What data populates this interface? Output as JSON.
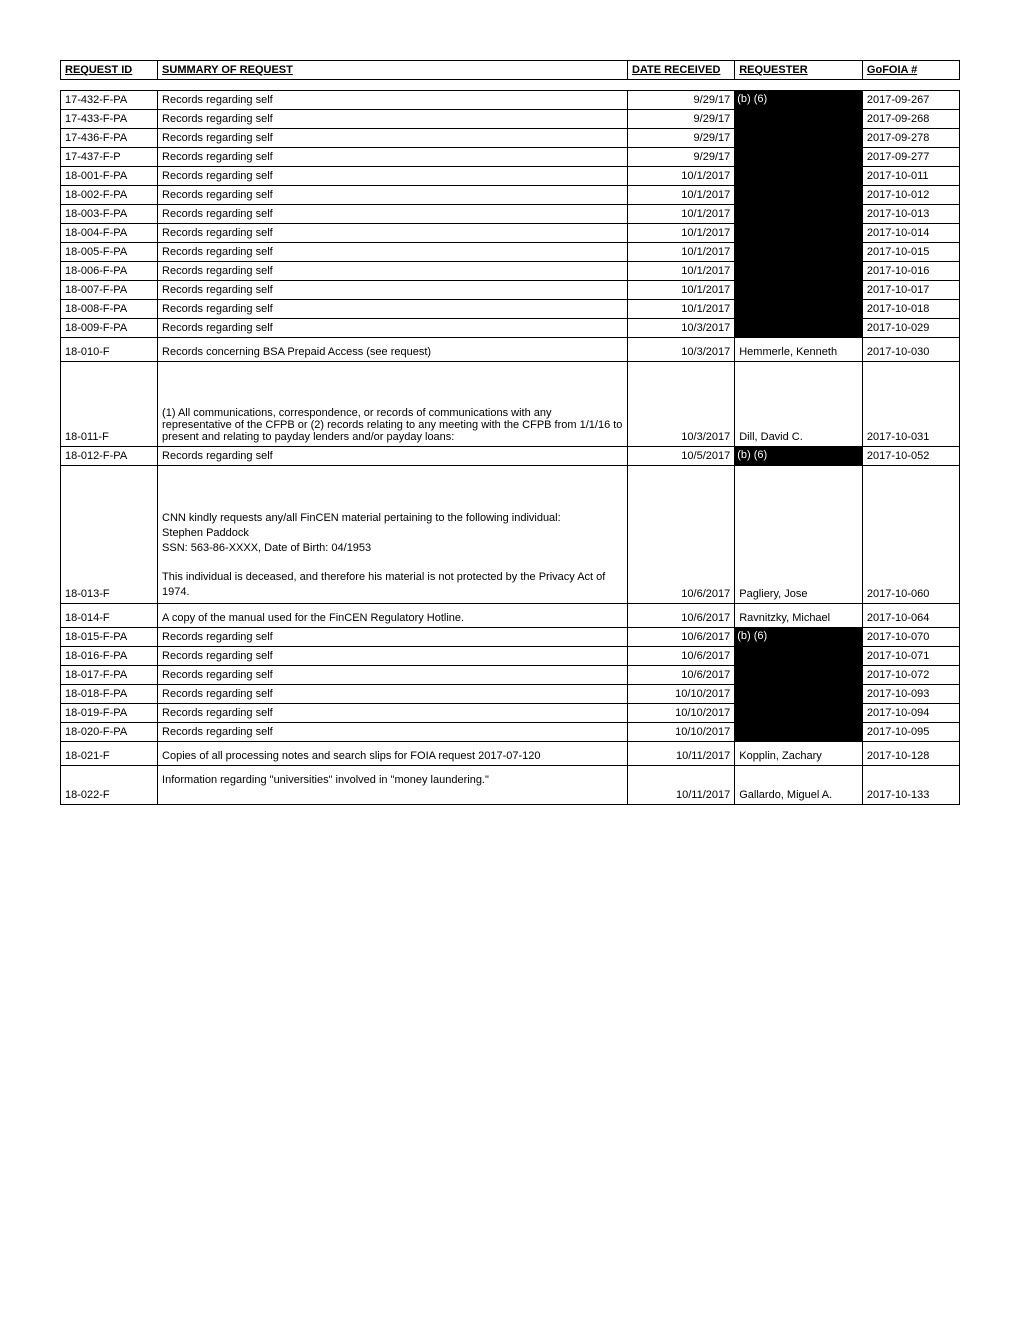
{
  "headers": {
    "request_id": "REQUEST ID",
    "summary": "SUMMARY OF REQUEST",
    "date": "DATE RECEIVED",
    "requester": "REQUESTER",
    "gofoia": "GoFOIA #"
  },
  "redaction_label": "(b) (6)",
  "rows": [
    {
      "id": "17-432-F-PA",
      "summary": "Records regarding self",
      "date": "9/29/17",
      "requester_redacted": true,
      "show_redact_label": true,
      "gofoia": "2017-09-267"
    },
    {
      "id": "17-433-F-PA",
      "summary": "Records regarding self",
      "date": "9/29/17",
      "requester_redacted": true,
      "gofoia": "2017-09-268"
    },
    {
      "id": "17-436-F-PA",
      "summary": "Records regarding self",
      "date": "9/29/17",
      "requester_redacted": true,
      "gofoia": "2017-09-278"
    },
    {
      "id": "17-437-F-P",
      "summary": "Records regarding self",
      "date": "9/29/17",
      "requester_redacted": true,
      "gofoia": "2017-09-277"
    },
    {
      "id": "18-001-F-PA",
      "summary": "Records regarding self",
      "date": "10/1/2017",
      "requester_redacted": true,
      "gofoia": "2017-10-011"
    },
    {
      "id": "18-002-F-PA",
      "summary": "Records regarding self",
      "date": "10/1/2017",
      "requester_redacted": true,
      "gofoia": "2017-10-012"
    },
    {
      "id": "18-003-F-PA",
      "summary": "Records regarding self",
      "date": "10/1/2017",
      "requester_redacted": true,
      "gofoia": "2017-10-013"
    },
    {
      "id": "18-004-F-PA",
      "summary": "Records regarding self",
      "date": "10/1/2017",
      "requester_redacted": true,
      "gofoia": "2017-10-014"
    },
    {
      "id": "18-005-F-PA",
      "summary": "Records regarding self",
      "date": "10/1/2017",
      "requester_redacted": true,
      "gofoia": "2017-10-015"
    },
    {
      "id": "18-006-F-PA",
      "summary": "Records regarding self",
      "date": "10/1/2017",
      "requester_redacted": true,
      "gofoia": "2017-10-016"
    },
    {
      "id": "18-007-F-PA",
      "summary": "Records regarding self",
      "date": "10/1/2017",
      "requester_redacted": true,
      "gofoia": "2017-10-017"
    },
    {
      "id": "18-008-F-PA",
      "summary": "Records regarding self",
      "date": "10/1/2017",
      "requester_redacted": true,
      "gofoia": "2017-10-018"
    },
    {
      "id": "18-009-F-PA",
      "summary": "Records regarding self",
      "date": "10/3/2017",
      "requester_redacted": true,
      "gofoia": "2017-10-029"
    },
    {
      "id": "18-010-F",
      "summary": "Records concerning BSA Prepaid Access (see request)",
      "date": "10/3/2017",
      "requester": "Hemmerle, Kenneth",
      "gofoia": "2017-10-030",
      "tall": true
    },
    {
      "id": "18-011-F",
      "summary": "(1) All communications, correspondence, or records of communications with any representative of the CFPB or (2) records relating to any meeting with the CFPB from 1/1/16 to present and relating to payday lenders and/or payday loans:",
      "date": "10/3/2017",
      "requester": "Dill, David C.",
      "gofoia": "2017-10-031",
      "tall": true,
      "extra_top": true
    },
    {
      "id": "18-012-F-PA",
      "summary": "Records regarding self",
      "date": "10/5/2017",
      "requester_redacted": true,
      "show_redact_label": true,
      "gofoia": "2017-10-052"
    },
    {
      "id": "18-013-F",
      "summary": "CNN kindly requests any/all FinCEN material pertaining to the following individual:\nStephen Paddock\nSSN: 563-86-XXXX, Date of Birth: 04/1953\n\nThis individual is deceased, and therefore his material is not protected by the Privacy Act of 1974.",
      "date": "10/6/2017",
      "requester": "Pagliery, Jose",
      "gofoia": "2017-10-060",
      "tall": true,
      "multi": true,
      "extra_top": true
    },
    {
      "id": "18-014-F",
      "summary": "A copy of the manual used for the FinCEN Regulatory Hotline.",
      "date": "10/6/2017",
      "requester": "Ravnitzky, Michael",
      "gofoia": "2017-10-064",
      "tall": true
    },
    {
      "id": "18-015-F-PA",
      "summary": "Records regarding self",
      "date": "10/6/2017",
      "requester_redacted": true,
      "show_redact_label": true,
      "gofoia": "2017-10-070"
    },
    {
      "id": "18-016-F-PA",
      "summary": "Records regarding self",
      "date": "10/6/2017",
      "requester_redacted": true,
      "gofoia": "2017-10-071"
    },
    {
      "id": "18-017-F-PA",
      "summary": "Records regarding self",
      "date": "10/6/2017",
      "requester_redacted": true,
      "gofoia": "2017-10-072"
    },
    {
      "id": "18-018-F-PA",
      "summary": "Records regarding self",
      "date": "10/10/2017",
      "requester_redacted": true,
      "gofoia": "2017-10-093"
    },
    {
      "id": "18-019-F-PA",
      "summary": "Records regarding self",
      "date": "10/10/2017",
      "requester_redacted": true,
      "gofoia": "2017-10-094"
    },
    {
      "id": "18-020-F-PA",
      "summary": "Records regarding self",
      "date": "10/10/2017",
      "requester_redacted": true,
      "gofoia": "2017-10-095"
    },
    {
      "id": "18-021-F",
      "summary": "Copies of all processing notes and search slips for FOIA request 2017-07-120",
      "date": "10/11/2017",
      "requester": "Kopplin, Zachary",
      "gofoia": "2017-10-128",
      "tall": true
    },
    {
      "id": "18-022-F",
      "summary": "Information regarding \"universities\" involved in \"money laundering.\"",
      "date": "10/11/2017",
      "requester": "Gallardo, Miguel A.",
      "gofoia": "2017-10-133",
      "tall": true,
      "summary_top": true
    }
  ]
}
